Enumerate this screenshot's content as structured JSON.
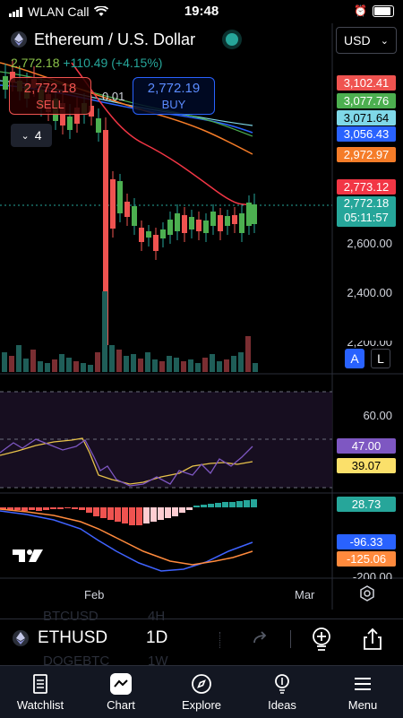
{
  "status": {
    "carrier": "WLAN Call",
    "time": "19:48"
  },
  "header": {
    "title": "Ethereum / U.S. Dollar",
    "ohlc_last": "2,772.18",
    "ohlc_change": "+110.49 (+4.15%)",
    "sell_price": "2,772.18",
    "sell_label": "SELL",
    "buy_price": "2,772.19",
    "buy_label": "BUY",
    "spread": "0.01",
    "interval": "4",
    "currency": "USD"
  },
  "price_tags": [
    {
      "text": "3,102.41",
      "color": "#ef5350"
    },
    {
      "text": "3,077.76",
      "color": "#4caf50"
    },
    {
      "text": "3,071.64",
      "color": "#7fd8e8"
    },
    {
      "text": "3,056.43",
      "color": "#2962ff"
    },
    {
      "text": "2,972.97",
      "color": "#f57c28"
    },
    {
      "text": "2,773.12",
      "color": "#f23645"
    }
  ],
  "current_price": {
    "price": "2,772.18",
    "countdown": "05:11:57",
    "color": "#26a69a"
  },
  "price_axis": [
    "2,600.00",
    "2,400.00",
    "2,200.00"
  ],
  "scale_buttons": {
    "auto": "A",
    "log": "L"
  },
  "rsi": {
    "level": "60.00",
    "value1": "47.00",
    "value2": "39.07"
  },
  "macd": {
    "value1": "28.73",
    "value2": "-96.33",
    "value3": "-125.06",
    "level": "-200.00"
  },
  "time_axis": [
    "Feb",
    "Mar"
  ],
  "symbol_bar": {
    "symbol": "ETHUSD",
    "interval": "1D",
    "ghost1": "BTCUSD",
    "ghost2": "4H",
    "ghost3": "DOGEBTC",
    "ghost4": "1W"
  },
  "tabs": [
    {
      "label": "Watchlist",
      "icon": "watchlist-icon"
    },
    {
      "label": "Chart",
      "icon": "chart-icon"
    },
    {
      "label": "Explore",
      "icon": "compass-icon"
    },
    {
      "label": "Ideas",
      "icon": "bulb-icon"
    },
    {
      "label": "Menu",
      "icon": "menu-icon"
    }
  ]
}
